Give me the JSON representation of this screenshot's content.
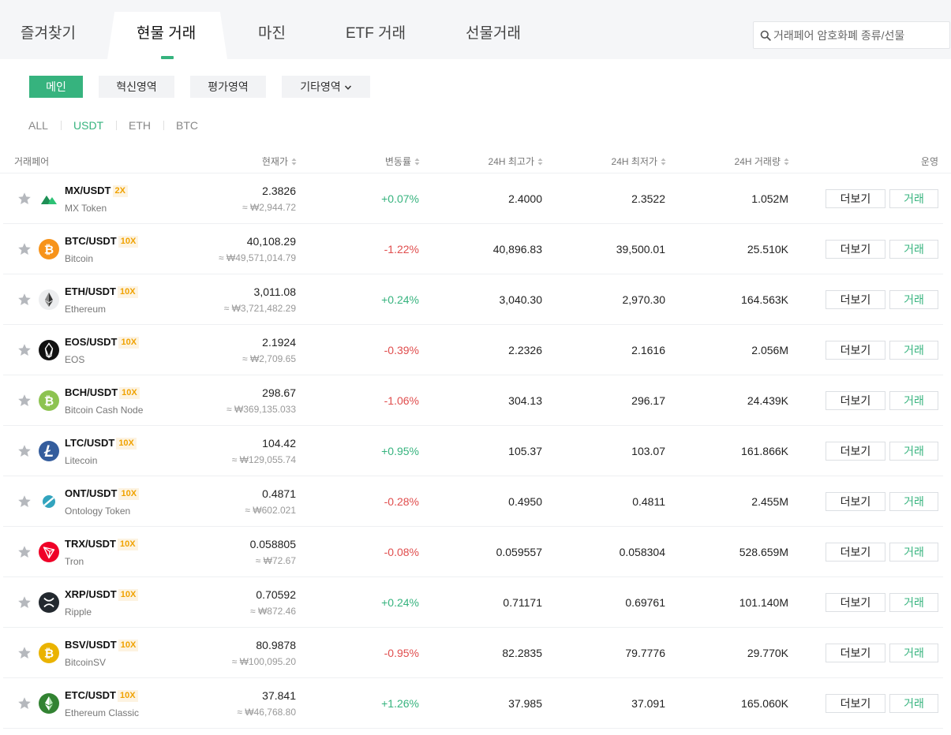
{
  "tabs": [
    {
      "label": "즐겨찾기"
    },
    {
      "label": "현물 거래"
    },
    {
      "label": "마진"
    },
    {
      "label": "ETF 거래"
    },
    {
      "label": "선물거래"
    }
  ],
  "active_tab": "현물 거래",
  "search": {
    "placeholder": "거래페어 암호화폐 종류/선물",
    "value": ""
  },
  "zones": [
    {
      "label": "메인",
      "active": true
    },
    {
      "label": "혁신영역",
      "active": false
    },
    {
      "label": "평가영역",
      "active": false
    },
    {
      "label": "기타영역",
      "active": false,
      "has_dropdown": true
    }
  ],
  "quote_filters": [
    {
      "label": "ALL",
      "active": false
    },
    {
      "label": "USDT",
      "active": true
    },
    {
      "label": "ETH",
      "active": false
    },
    {
      "label": "BTC",
      "active": false
    }
  ],
  "columns": {
    "pair": "거래페어",
    "price": "현재가",
    "change": "변동률",
    "high": "24H 최고가",
    "low": "24H 최저가",
    "volume": "24H 거래량",
    "action": "운영"
  },
  "button_labels": {
    "more": "더보기",
    "trade": "거래"
  },
  "colors": {
    "accent": "#36b37e",
    "down": "#e04d4d",
    "leverage": "#f0a200"
  },
  "rows": [
    {
      "pair": "MX/USDT",
      "leverage": "2X",
      "name": "MX Token",
      "price": "2.3826",
      "krw": "≈ ₩2,944.72",
      "change": "+0.07%",
      "dir": "up",
      "high": "2.4000",
      "low": "2.3522",
      "volume": "1.052M",
      "icon": "mx-token-icon",
      "icon_color": "#2dc275"
    },
    {
      "pair": "BTC/USDT",
      "leverage": "10X",
      "name": "Bitcoin",
      "price": "40,108.29",
      "krw": "≈ ₩49,571,014.79",
      "change": "-1.22%",
      "dir": "down",
      "high": "40,896.83",
      "low": "39,500.01",
      "volume": "25.510K",
      "icon": "bitcoin-icon",
      "icon_color": "#f7931a"
    },
    {
      "pair": "ETH/USDT",
      "leverage": "10X",
      "name": "Ethereum",
      "price": "3,011.08",
      "krw": "≈ ₩3,721,482.29",
      "change": "+0.24%",
      "dir": "up",
      "high": "3,040.30",
      "low": "2,970.30",
      "volume": "164.563K",
      "icon": "ethereum-icon",
      "icon_color": "#ecedef"
    },
    {
      "pair": "EOS/USDT",
      "leverage": "10X",
      "name": "EOS",
      "price": "2.1924",
      "krw": "≈ ₩2,709.65",
      "change": "-0.39%",
      "dir": "down",
      "high": "2.2326",
      "low": "2.1616",
      "volume": "2.056M",
      "icon": "eos-icon",
      "icon_color": "#111111"
    },
    {
      "pair": "BCH/USDT",
      "leverage": "10X",
      "name": "Bitcoin Cash Node",
      "price": "298.67",
      "krw": "≈ ₩369,135.033",
      "change": "-1.06%",
      "dir": "down",
      "high": "304.13",
      "low": "296.17",
      "volume": "24.439K",
      "icon": "bitcoin-cash-icon",
      "icon_color": "#8dc351"
    },
    {
      "pair": "LTC/USDT",
      "leverage": "10X",
      "name": "Litecoin",
      "price": "104.42",
      "krw": "≈ ₩129,055.74",
      "change": "+0.95%",
      "dir": "up",
      "high": "105.37",
      "low": "103.07",
      "volume": "161.866K",
      "icon": "litecoin-icon",
      "icon_color": "#345d9d"
    },
    {
      "pair": "ONT/USDT",
      "leverage": "10X",
      "name": "Ontology Token",
      "price": "0.4871",
      "krw": "≈ ₩602.021",
      "change": "-0.28%",
      "dir": "down",
      "high": "0.4950",
      "low": "0.4811",
      "volume": "2.455M",
      "icon": "ontology-icon",
      "icon_color": "#32a4be"
    },
    {
      "pair": "TRX/USDT",
      "leverage": "10X",
      "name": "Tron",
      "price": "0.058805",
      "krw": "≈ ₩72.67",
      "change": "-0.08%",
      "dir": "down",
      "high": "0.059557",
      "low": "0.058304",
      "volume": "528.659M",
      "icon": "tron-icon",
      "icon_color": "#ef0027"
    },
    {
      "pair": "XRP/USDT",
      "leverage": "10X",
      "name": "Ripple",
      "price": "0.70592",
      "krw": "≈ ₩872.46",
      "change": "+0.24%",
      "dir": "up",
      "high": "0.71171",
      "low": "0.69761",
      "volume": "101.140M",
      "icon": "ripple-icon",
      "icon_color": "#23292f"
    },
    {
      "pair": "BSV/USDT",
      "leverage": "10X",
      "name": "BitcoinSV",
      "price": "80.9878",
      "krw": "≈ ₩100,095.20",
      "change": "-0.95%",
      "dir": "down",
      "high": "82.2835",
      "low": "79.7776",
      "volume": "29.770K",
      "icon": "bitcoin-sv-icon",
      "icon_color": "#eab300"
    },
    {
      "pair": "ETC/USDT",
      "leverage": "10X",
      "name": "Ethereum Classic",
      "price": "37.841",
      "krw": "≈ ₩46,768.80",
      "change": "+1.26%",
      "dir": "up",
      "high": "37.985",
      "low": "37.091",
      "volume": "165.060K",
      "icon": "ethereum-classic-icon",
      "icon_color": "#328332"
    }
  ]
}
